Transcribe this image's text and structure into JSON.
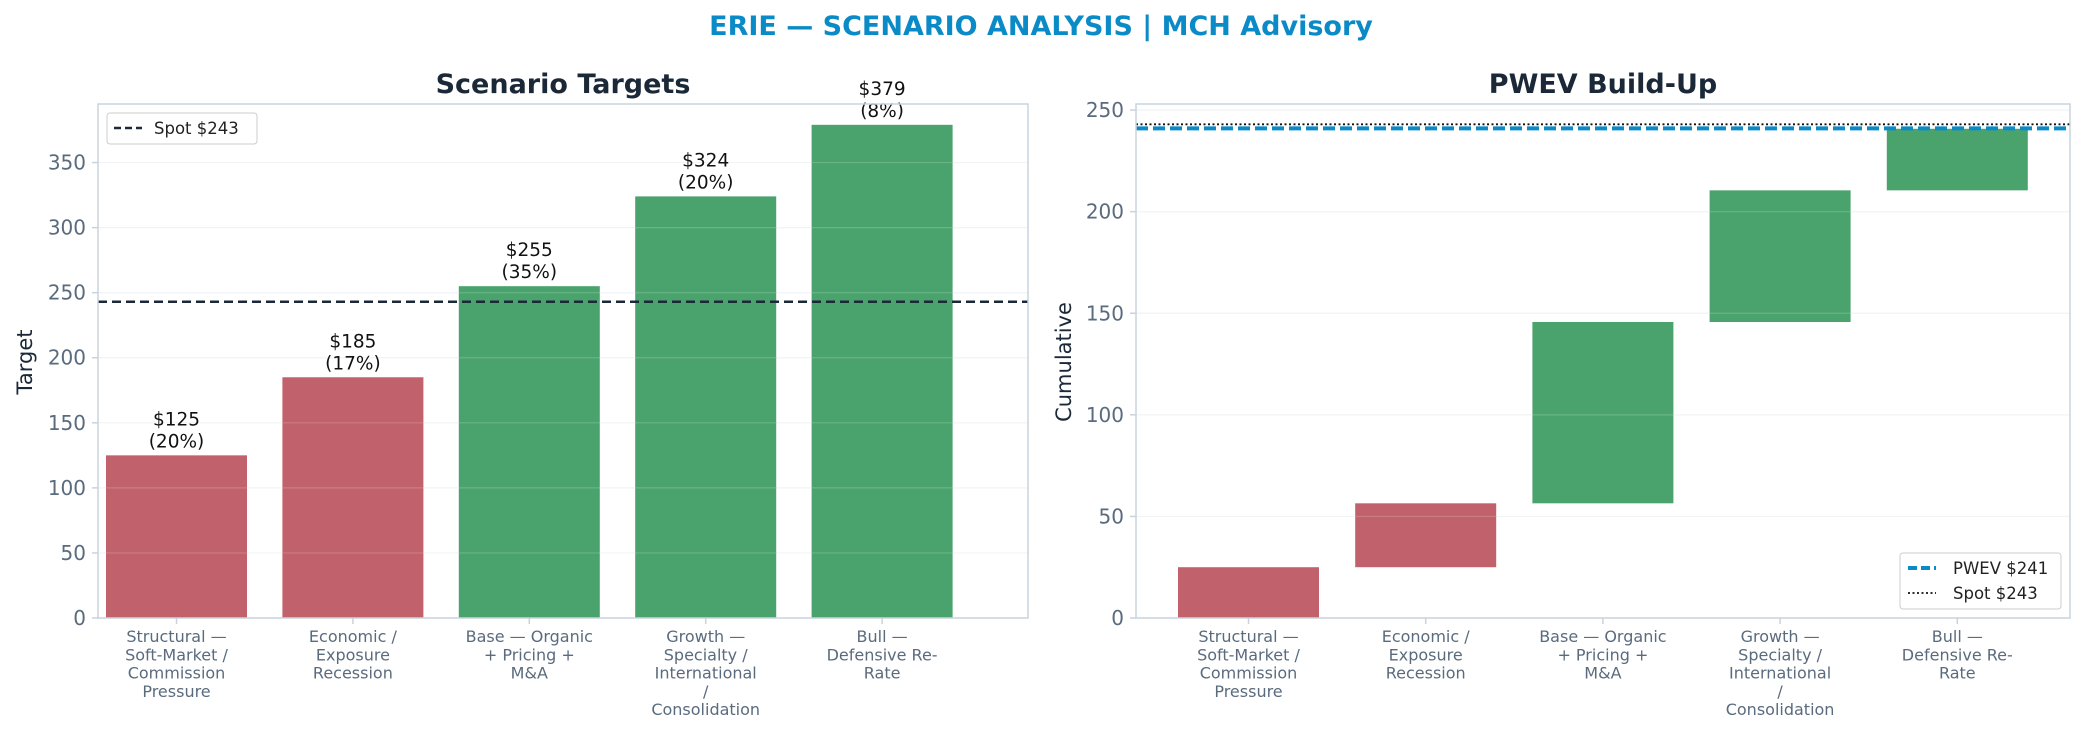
{
  "figure": {
    "title": "ERIE — SCENARIO ANALYSIS | MCH Advisory"
  },
  "colors": {
    "bear": "#c0616b",
    "bull": "#4aa36c",
    "spot_line": "#1b2838",
    "pwev_line": "#0a8ac6",
    "title": "#0a8ac6",
    "axis_frame": "#c9d3de",
    "grid": "#eef1f4",
    "tick_text": "#5a6b7e"
  },
  "chart_data": [
    {
      "type": "bar",
      "title": "Scenario Targets",
      "xlabel": "",
      "ylabel": "Target",
      "ylim": [
        0,
        395
      ],
      "yticks": [
        "0",
        "50",
        "100",
        "150",
        "200",
        "250",
        "300",
        "350"
      ],
      "grid": true,
      "categories": [
        [
          "Structural —",
          "Soft-Market /",
          "Commission",
          "Pressure"
        ],
        [
          "Economic /",
          "Exposure",
          "Recession"
        ],
        [
          "Base — Organic",
          "+ Pricing +",
          "M&A"
        ],
        [
          "Growth —",
          "Specialty /",
          "International",
          "/",
          "Consolidation"
        ],
        [
          "Bull —",
          "Defensive Re-",
          "Rate"
        ]
      ],
      "values": [
        125,
        185,
        255,
        324,
        379
      ],
      "probabilities": [
        20,
        17,
        35,
        20,
        8
      ],
      "bar_labels": [
        [
          "$125",
          "(20%)"
        ],
        [
          "$185",
          "(17%)"
        ],
        [
          "$255",
          "(35%)"
        ],
        [
          "$324",
          "(20%)"
        ],
        [
          "$379",
          "(8%)"
        ]
      ],
      "bar_colors": [
        "bear",
        "bear",
        "bull",
        "bull",
        "bull"
      ],
      "reference_lines": [
        {
          "label": "Spot $243",
          "value": 243,
          "style": "dashed"
        }
      ],
      "legend_position": "upper-left"
    },
    {
      "type": "waterfall",
      "title": "PWEV Build-Up",
      "xlabel": "",
      "ylabel": "Cumulative",
      "ylim": [
        0,
        253
      ],
      "yticks": [
        "0",
        "50",
        "100",
        "150",
        "200",
        "250"
      ],
      "grid": true,
      "categories": [
        [
          "Structural —",
          "Soft-Market /",
          "Commission",
          "Pressure"
        ],
        [
          "Economic /",
          "Exposure",
          "Recession"
        ],
        [
          "Base — Organic",
          "+ Pricing +",
          "M&A"
        ],
        [
          "Growth —",
          "Specialty /",
          "International",
          "/",
          "Consolidation"
        ],
        [
          "Bull —",
          "Defensive Re-",
          "Rate"
        ]
      ],
      "steps": [
        {
          "start": 0,
          "end": 25
        },
        {
          "start": 25,
          "end": 56.45
        },
        {
          "start": 56.45,
          "end": 145.7
        },
        {
          "start": 145.7,
          "end": 210.5
        },
        {
          "start": 210.5,
          "end": 240.8
        }
      ],
      "bar_colors": [
        "bear",
        "bear",
        "bull",
        "bull",
        "bull"
      ],
      "reference_lines": [
        {
          "label": "PWEV $241",
          "value": 241,
          "style": "dashed"
        },
        {
          "label": "Spot $243",
          "value": 243,
          "style": "dotted"
        }
      ],
      "legend_position": "lower-right"
    }
  ]
}
